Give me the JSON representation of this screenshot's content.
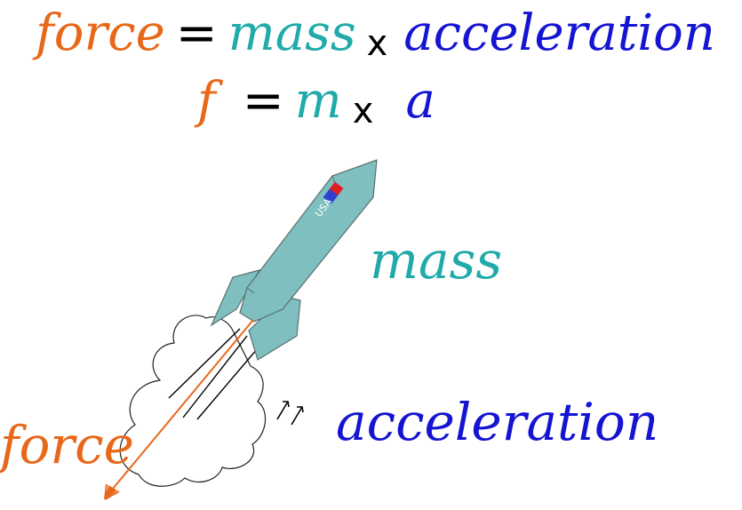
{
  "equations": {
    "full": {
      "force": "force",
      "equals": "=",
      "mass": "mass",
      "times": "x",
      "acceleration": "acceleration"
    },
    "short": {
      "force": "f",
      "equals": "=",
      "mass": "m",
      "times": "x",
      "acceleration": "a"
    }
  },
  "labels": {
    "mass": "mass",
    "force": "force",
    "acceleration": "acceleration"
  },
  "rocket": {
    "body_text": "USA"
  },
  "colors": {
    "force": "#e8681a",
    "mass": "#21aaaa",
    "acceleration": "#1414d2",
    "operator": "#000000",
    "rocket_fill": "#7fbfbf",
    "rocket_stroke": "#5a6f6f",
    "flag_red": "#e02020",
    "flag_blue": "#3040d0"
  }
}
